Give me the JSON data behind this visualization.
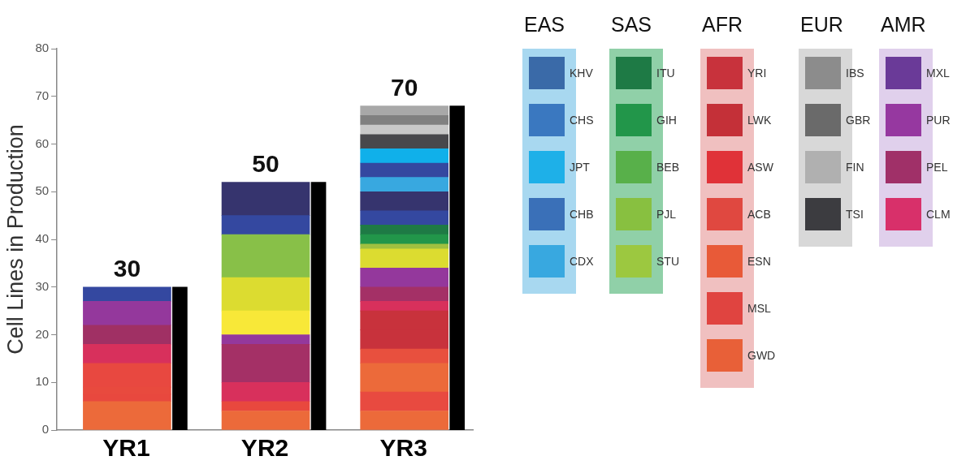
{
  "chart_data": [
    {
      "type": "bar",
      "stacked": true,
      "ylabel": "Cell Lines in Production",
      "categories": [
        "YR1",
        "YR2",
        "YR3"
      ],
      "ylim": [
        0,
        80
      ],
      "yticks": [
        0,
        10,
        20,
        30,
        40,
        50,
        60,
        70,
        80
      ],
      "grid": false,
      "legend": false,
      "totals": [
        "30",
        "50",
        "70"
      ],
      "series": [
        {
          "values": [
            6,
            4,
            4
          ],
          "colors": [
            "#ec6a3a",
            "#ec6a3a",
            "#ec6a3a"
          ]
        },
        {
          "values": [
            1.5,
            2,
            4
          ],
          "colors": [
            "#e8483e",
            "#e8483e",
            "#e84a40"
          ]
        },
        {
          "values": [
            1.5,
            4,
            6
          ],
          "colors": [
            "#e84a3e",
            "#d8305c",
            "#ec6a3a"
          ]
        },
        {
          "values": [
            5,
            8,
            3
          ],
          "colors": [
            "#e84840",
            "#a43066",
            "#e8503e"
          ]
        },
        {
          "values": [
            4,
            2,
            4
          ],
          "colors": [
            "#d8305c",
            "#94389c",
            "#c8323c"
          ]
        },
        {
          "values": [
            4,
            5,
            4
          ],
          "colors": [
            "#a03064",
            "#f8e838",
            "#c8323c"
          ]
        },
        {
          "values": [
            5,
            7,
            2
          ],
          "colors": [
            "#94389c",
            "#dcdc30",
            "#d8305c"
          ]
        },
        {
          "values": [
            3,
            9,
            3
          ],
          "colors": [
            "#3448a0",
            "#88c048",
            "#a43066"
          ]
        },
        {
          "values": [
            null,
            4,
            4
          ],
          "colors": [
            null,
            "#3448a0",
            "#94389c"
          ]
        },
        {
          "values": [
            null,
            7,
            4
          ],
          "colors": [
            null,
            "#36346e",
            "#dcdc30"
          ]
        },
        {
          "values": [
            null,
            null,
            1
          ],
          "colors": [
            null,
            null,
            "#a0c040"
          ]
        },
        {
          "values": [
            null,
            null,
            2
          ],
          "colors": [
            null,
            null,
            "#22964a"
          ]
        },
        {
          "values": [
            null,
            null,
            2
          ],
          "colors": [
            null,
            null,
            "#1e7a45"
          ]
        },
        {
          "values": [
            null,
            null,
            3
          ],
          "colors": [
            null,
            null,
            "#3448a0"
          ]
        },
        {
          "values": [
            null,
            null,
            4
          ],
          "colors": [
            null,
            null,
            "#36346e"
          ]
        },
        {
          "values": [
            null,
            null,
            3
          ],
          "colors": [
            null,
            null,
            "#38a8e0"
          ]
        },
        {
          "values": [
            null,
            null,
            3
          ],
          "colors": [
            null,
            null,
            "#3448a0"
          ]
        },
        {
          "values": [
            null,
            null,
            3
          ],
          "colors": [
            null,
            null,
            "#10b0ea"
          ]
        },
        {
          "values": [
            null,
            null,
            3
          ],
          "colors": [
            null,
            null,
            "#48484c"
          ]
        },
        {
          "values": [
            null,
            null,
            2
          ],
          "colors": [
            null,
            null,
            "#c8c8c8"
          ]
        },
        {
          "values": [
            null,
            null,
            2
          ],
          "colors": [
            null,
            null,
            "#808080"
          ]
        },
        {
          "values": [
            null,
            null,
            2
          ],
          "colors": [
            null,
            null,
            "#a8a8a8"
          ]
        }
      ]
    },
    {
      "type": "bar",
      "categories": [
        null,
        null,
        null
      ],
      "ylim": [
        0,
        80
      ],
      "grid": false,
      "legend": false,
      "series": [
        {
          "values": [
            30,
            52,
            68
          ],
          "color": "#000000"
        }
      ]
    },
    {
      "type": "other",
      "title": "EAS",
      "color": "#a8d8f0",
      "categories": [
        "KHV",
        "CHS",
        "JPT",
        "CHB",
        "CDX"
      ],
      "colors": [
        "#3a6aa8",
        "#3a78c0",
        "#1eb0e8",
        "#3a70b8",
        "#38a8e0"
      ]
    },
    {
      "type": "other",
      "title": "SAS",
      "color": "#90d0a8",
      "categories": [
        "ITU",
        "GIH",
        "BEB",
        "PJL",
        "STU"
      ],
      "colors": [
        "#1e7a45",
        "#22964a",
        "#58b04a",
        "#88c040",
        "#9cc840"
      ]
    },
    {
      "type": "other",
      "title": "AFR",
      "color": "#f0c0c0",
      "categories": [
        "YRI",
        "LWK",
        "ASW",
        "ACB",
        "ESN",
        "MSL",
        "GWD"
      ],
      "colors": [
        "#c8323c",
        "#c43038",
        "#e03238",
        "#e04840",
        "#e85a38",
        "#e04440",
        "#e86038"
      ]
    },
    {
      "type": "other",
      "title": "EUR",
      "color": "#d8d8d8",
      "categories": [
        "IBS",
        "GBR",
        "FIN",
        "TSI"
      ],
      "colors": [
        "#8c8c8c",
        "#6a6a6a",
        "#b0b0b0",
        "#3c3c40"
      ]
    },
    {
      "type": "other",
      "title": "AMR",
      "color": "#e0d0ec",
      "categories": [
        "MXL",
        "PUR",
        "PEL",
        "CLM"
      ],
      "colors": [
        "#6a3a98",
        "#9638a0",
        "#a03068",
        "#d8306a"
      ]
    }
  ]
}
